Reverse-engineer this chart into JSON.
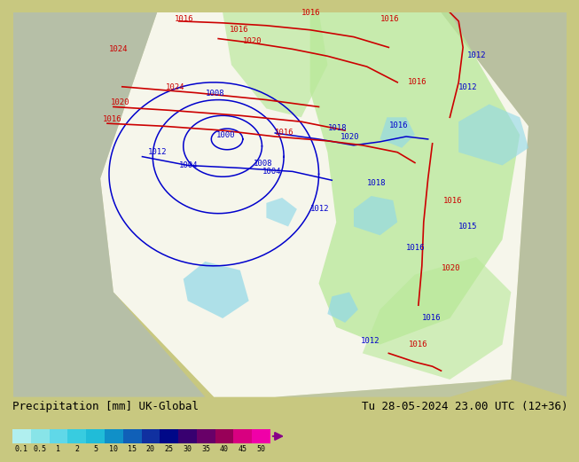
{
  "title_left": "Precipitation [mm] UK-Global",
  "title_right": "Tu 28-05-2024 23.00 UTC (12+36)",
  "colorbar_labels": [
    "0.1",
    "0.5",
    "1",
    "2",
    "5",
    "10",
    "15",
    "20",
    "25",
    "30",
    "35",
    "40",
    "45",
    "50"
  ],
  "colorbar_colors": [
    "#b0efef",
    "#88e4e8",
    "#60d8e8",
    "#38cce0",
    "#20bcd8",
    "#1090c8",
    "#1060b8",
    "#1030a0",
    "#000888",
    "#380070",
    "#680068",
    "#980058",
    "#d80080",
    "#f000a8"
  ],
  "land_color": "#c8c880",
  "map_land": "#c8c880",
  "cone_color": "#f0f0f0",
  "sea_color": "#a8b8c8",
  "green_precip": "#b8e898",
  "cyan_precip": "#90d8e8",
  "blue_line": "#0000cc",
  "red_line": "#cc0000",
  "label_fontsize": 6.5,
  "info_fontsize": 9.0
}
